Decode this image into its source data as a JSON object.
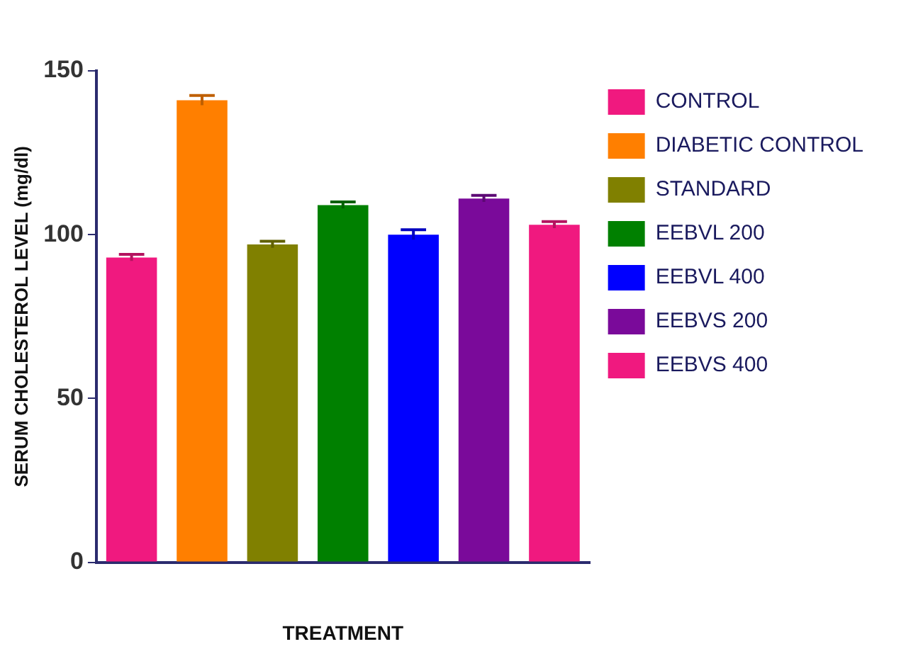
{
  "chart_data": {
    "type": "bar",
    "xlabel": "TREATMENT",
    "ylabel": "SERUM CHOLESTEROL LEVEL (mg/dl)",
    "categories": [
      null
    ],
    "series": [
      {
        "name": "CONTROL",
        "color": "#f0197f",
        "values": [
          93
        ],
        "errors": [
          1
        ]
      },
      {
        "name": "DIABETIC CONTROL",
        "color": "#ff7f00",
        "values": [
          141
        ],
        "errors": [
          1.5
        ]
      },
      {
        "name": "STANDARD",
        "color": "#808000",
        "values": [
          97
        ],
        "errors": [
          1
        ]
      },
      {
        "name": "EEBVL 200",
        "color": "#008000",
        "values": [
          109
        ],
        "errors": [
          1
        ]
      },
      {
        "name": "EEBVL 400",
        "color": "#0000ff",
        "values": [
          100
        ],
        "errors": [
          1.5
        ]
      },
      {
        "name": "EEBVS 200",
        "color": "#7a0a9a",
        "values": [
          111
        ],
        "errors": [
          1
        ]
      },
      {
        "name": "EEBVS 400",
        "color": "#f0197f",
        "values": [
          103
        ],
        "errors": [
          1
        ]
      }
    ],
    "ylim": [
      0,
      150
    ],
    "yticks": [
      0,
      50,
      100,
      150
    ],
    "grid": false,
    "legend": "right"
  }
}
